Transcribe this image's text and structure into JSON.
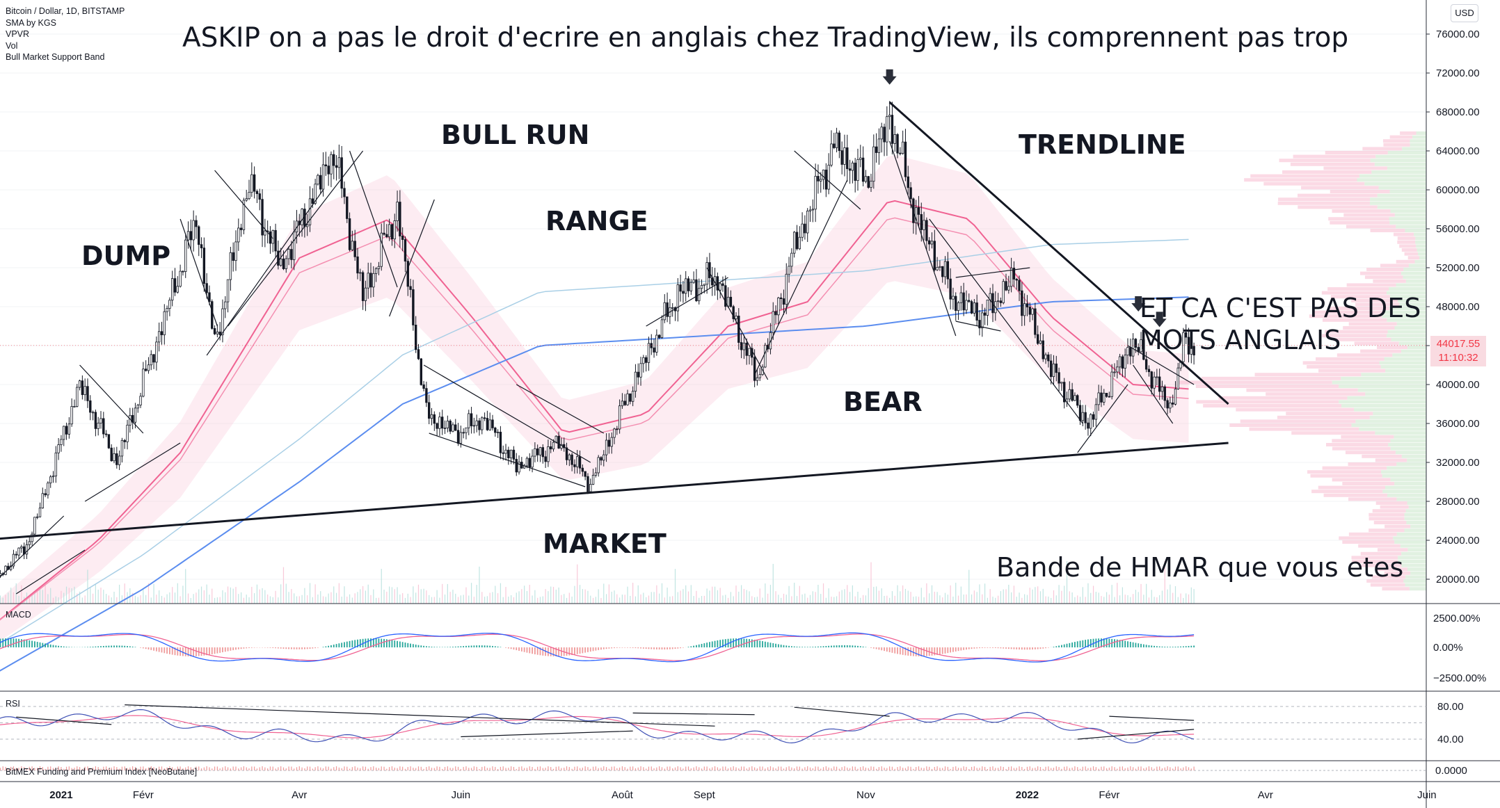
{
  "legend": {
    "symbol": "Bitcoin / Dollar, 1D, BITSTAMP",
    "indicators": [
      "SMA by KGS",
      "VPVR",
      "Vol",
      "Bull Market Support Band"
    ]
  },
  "currency_badge": "USD",
  "annotations": {
    "title": "ASKIP on a pas le droit d'ecrire en anglais chez TradingView, ils comprennent pas trop",
    "dump": "DUMP",
    "bull_run": "BULL RUN",
    "range": "RANGE",
    "trendline": "TRENDLINE",
    "bear": "BEAR",
    "market": "MARKET",
    "hmar": "Bande de HMAR que vous etes",
    "pas_anglais_line1": "ET CA C'EST PAS DES",
    "pas_anglais_line2": "MOTS ANGLAIS"
  },
  "last_price": {
    "value": "44017.55",
    "countdown": "11:10:32"
  },
  "pane_titles": {
    "macd": "MACD",
    "rsi": "RSI",
    "bitmex": "BitMEX Funding and Premium Index [NeoButane]"
  },
  "colors": {
    "candle": "#131722",
    "trendline": "#131722",
    "ma_red": "#f06292",
    "ma_blue": "#5b8def",
    "ma_light_blue": "#a9cfe6",
    "band_fill": "#f8bbd0",
    "vpvr": "#f8bbd0",
    "vpvr_green": "#c8e6c9",
    "macd_line": "#2962ff",
    "signal_line": "#f06292",
    "hist_pos": "#26a69a",
    "hist_neg": "#ef9a9a",
    "grid": "#e6e9ef",
    "axis_text": "#131722"
  },
  "chart_data": [
    {
      "type": "candlestick",
      "title": "Bitcoin / Dollar, 1D, BITSTAMP",
      "x_tick_labels": [
        "2021",
        "Févr",
        "Avr",
        "Juin",
        "Août",
        "Sept",
        "Nov",
        "2022",
        "Févr",
        "Avr",
        "Juin"
      ],
      "x_tick_dates": [
        "2021-01-01",
        "2021-02-01",
        "2021-04-01",
        "2021-06-01",
        "2021-08-01",
        "2021-09-01",
        "2021-11-01",
        "2022-01-01",
        "2022-02-01",
        "2022-04-01",
        "2022-06-01"
      ],
      "y_tick_labels": [
        "76000.00",
        "72000.00",
        "68000.00",
        "64000.00",
        "60000.00",
        "56000.00",
        "52000.00",
        "48000.00",
        "44000.00",
        "40000.00",
        "36000.00",
        "32000.00",
        "28000.00",
        "24000.00",
        "20000.00"
      ],
      "ylim": [
        17500,
        79500
      ],
      "last_price": 44017.55,
      "close_path": {
        "dates": [
          "2020-12-05",
          "2020-12-20",
          "2021-01-08",
          "2021-01-22",
          "2021-02-08",
          "2021-02-21",
          "2021-02-28",
          "2021-03-13",
          "2021-03-25",
          "2021-04-14",
          "2021-04-25",
          "2021-05-08",
          "2021-05-19",
          "2021-05-30",
          "2021-06-10",
          "2021-06-22",
          "2021-07-08",
          "2021-07-20",
          "2021-08-05",
          "2021-08-22",
          "2021-09-06",
          "2021-09-21",
          "2021-10-05",
          "2021-10-20",
          "2021-11-01",
          "2021-11-10",
          "2021-11-20",
          "2021-12-04",
          "2021-12-15",
          "2021-12-27",
          "2022-01-10",
          "2022-01-24",
          "2022-02-10",
          "2022-02-24",
          "2022-03-01",
          "2022-03-05"
        ],
        "close": [
          19200,
          24000,
          40000,
          32000,
          46000,
          57000,
          44000,
          61000,
          52000,
          64000,
          49000,
          58000,
          37000,
          35000,
          36500,
          31500,
          34000,
          29800,
          40000,
          49500,
          51000,
          40500,
          54000,
          64500,
          61000,
          67500,
          57500,
          49000,
          47000,
          51000,
          41500,
          36000,
          44500,
          37500,
          44000,
          44017.55
        ]
      },
      "trendlines": [
        {
          "name": "support",
          "from": {
            "date": "2020-12-01",
            "price": 24000
          },
          "to": {
            "date": "2022-03-18",
            "price": 34000
          }
        },
        {
          "name": "resistance",
          "from": {
            "date": "2021-11-10",
            "price": 69000
          },
          "to": {
            "date": "2022-03-18",
            "price": 38000
          }
        }
      ],
      "moving_averages": {
        "red_dates": [
          "2020-12-05",
          "2021-01-15",
          "2021-02-15",
          "2021-04-01",
          "2021-05-05",
          "2021-06-05",
          "2021-07-10",
          "2021-08-10",
          "2021-09-10",
          "2021-10-10",
          "2021-11-10",
          "2021-12-10",
          "2022-01-10",
          "2022-02-10",
          "2022-03-05"
        ],
        "red_values": [
          15000,
          24000,
          33000,
          53000,
          57000,
          47000,
          35000,
          37000,
          46000,
          48500,
          59000,
          57000,
          47000,
          40000,
          39500
        ],
        "blue_dates": [
          "2020-12-05",
          "2021-02-01",
          "2021-04-01",
          "2021-05-10",
          "2021-07-01",
          "2021-09-01",
          "2021-11-01",
          "2022-01-10",
          "2022-03-05"
        ],
        "blue_values": [
          10000,
          19000,
          30000,
          38000,
          44000,
          45000,
          46000,
          48500,
          49000
        ]
      }
    },
    {
      "type": "line",
      "title": "MACD",
      "y_tick_labels": [
        "2500.00%",
        "0.00%",
        "−2500.00%"
      ]
    },
    {
      "type": "line",
      "title": "RSI",
      "y_tick_labels": [
        "80.00",
        "40.00"
      ]
    },
    {
      "type": "line",
      "title": "BitMEX Funding and Premium Index [NeoButane]",
      "y_tick_labels": [
        "0.0000"
      ]
    }
  ]
}
